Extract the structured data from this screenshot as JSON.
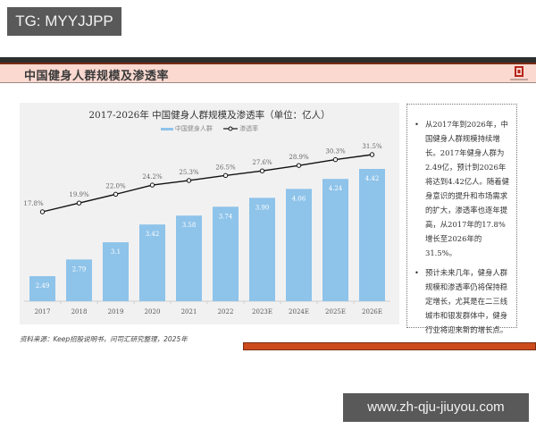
{
  "watermark_top": "TG: MYYJJPP",
  "watermark_bottom": "www.zh-qju-jiuyou.com",
  "header": {
    "title": "中国健身人群规模及渗透率",
    "logo_icon": "brand-logo-icon",
    "colors": {
      "band": "#fbd9d0",
      "dark": "#2e2e2e",
      "accent": "#cc4a1c"
    }
  },
  "chart": {
    "title": "2017-2026年 中国健身人群规模及渗透率（单位：亿人）",
    "legend_bar": "中国健身人群",
    "legend_line": "渗透率"
  },
  "chart_data": {
    "type": "bar",
    "title": "2017-2026年 中国健身人群规模及渗透率（单位：亿人）",
    "categories": [
      "2017",
      "2018",
      "2019",
      "2020",
      "2021",
      "2022",
      "2023E",
      "2024E",
      "2025E",
      "2026E"
    ],
    "series": [
      {
        "name": "中国健身人群",
        "type": "bar",
        "color": "#8ec3ea",
        "values": [
          2.49,
          2.79,
          3.1,
          3.42,
          3.58,
          3.74,
          3.9,
          4.06,
          4.24,
          4.42
        ],
        "labels": [
          "2.49",
          "2.79",
          "3.1",
          "3.42",
          "3.58",
          "3.74",
          "3.90",
          "4.06",
          "4.24",
          "4.42"
        ]
      },
      {
        "name": "渗透率",
        "type": "line",
        "color": "#111111",
        "values": [
          17.8,
          19.9,
          22.0,
          24.2,
          25.3,
          26.5,
          27.6,
          28.9,
          30.3,
          31.5
        ],
        "labels": [
          "17.8%",
          "19.9%",
          "22.0%",
          "24.2%",
          "25.3%",
          "26.5%",
          "27.6%",
          "28.9%",
          "30.3%",
          "31.5%"
        ]
      }
    ],
    "xlabel": "",
    "ylabel": "",
    "legend_position": "top",
    "grid": false
  },
  "notes": {
    "bullets": [
      "从2017年到2026年，中国健身人群规模持续增长。2017年健身人群为2.49亿，预计到2026年将达到4.42亿人。随着健身意识的提升和市场需求的扩大，渗透率也逐年提高，从2017年的17.8%增长至2026年的31.5%。",
      "预计未来几年，健身人群规模和渗透率仍将保持稳定增长，尤其是在二三线城市和银发群体中，健身行业将迎来新的增长点。"
    ]
  },
  "source": "资料来源：Keep招股说明书，问司汇研究整理，2025年"
}
